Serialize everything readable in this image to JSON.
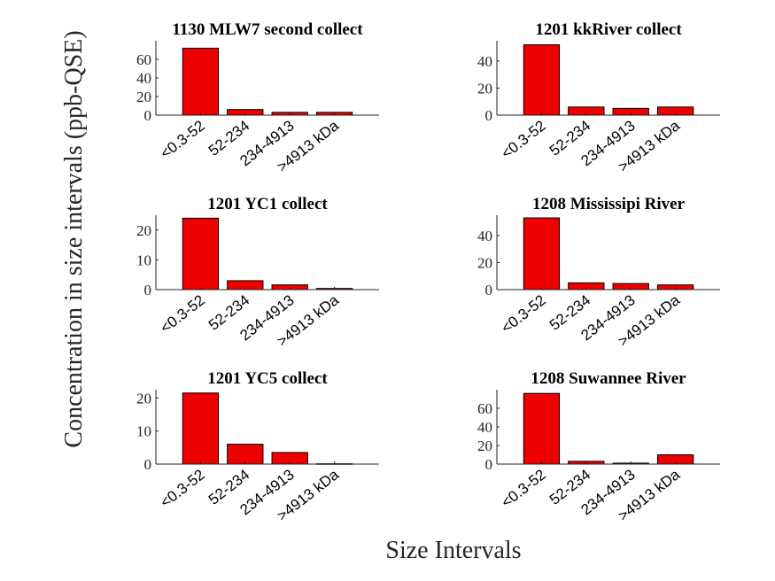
{
  "figure": {
    "ylabel": "Concentration in size intervals (ppb-QSE)",
    "xlabel": "Size Intervals"
  },
  "colors": {
    "bar": "#ee0000",
    "axis": "#222222"
  },
  "chart_data": [
    {
      "type": "bar",
      "title": "1130 MLW7 second collect",
      "categories": [
        "<0.3-52",
        "52-234",
        "234-4913",
        ">4913 kDa"
      ],
      "values": [
        72,
        6,
        3,
        3
      ],
      "ylim": [
        0,
        80
      ],
      "yticks": [
        0,
        20,
        40,
        60
      ],
      "grid": false
    },
    {
      "type": "bar",
      "title": "1201 kkRiver collect",
      "categories": [
        "<0.3-52",
        "52-234",
        "234-4913",
        ">4913 kDa"
      ],
      "values": [
        52,
        6,
        5,
        6
      ],
      "ylim": [
        0,
        55
      ],
      "yticks": [
        0,
        20,
        40
      ],
      "grid": false
    },
    {
      "type": "bar",
      "title": "1201 YC1 collect",
      "categories": [
        "<0.3-52",
        "52-234",
        "234-4913",
        ">4913 kDa"
      ],
      "values": [
        24,
        3,
        1.6,
        0.4
      ],
      "ylim": [
        0,
        25
      ],
      "yticks": [
        0,
        10,
        20
      ],
      "grid": false
    },
    {
      "type": "bar",
      "title": "1208 Mississipi River",
      "categories": [
        "<0.3-52",
        "52-234",
        "234-4913",
        ">4913 kDa"
      ],
      "values": [
        53,
        5,
        4.5,
        3.5
      ],
      "ylim": [
        0,
        55
      ],
      "yticks": [
        0,
        20,
        40
      ],
      "grid": false
    },
    {
      "type": "bar",
      "title": "1201 YC5 collect",
      "categories": [
        "<0.3-52",
        "52-234",
        "234-4913",
        ">4913 kDa"
      ],
      "values": [
        21.5,
        6,
        3.5,
        0.1
      ],
      "ylim": [
        0,
        22.5
      ],
      "yticks": [
        0,
        10,
        20
      ],
      "grid": false
    },
    {
      "type": "bar",
      "title": "1208 Suwannee River",
      "categories": [
        "<0.3-52",
        "52-234",
        "234-4913",
        ">4913 kDa"
      ],
      "values": [
        76,
        3,
        1,
        10
      ],
      "ylim": [
        0,
        80
      ],
      "yticks": [
        0,
        20,
        40,
        60
      ],
      "grid": false
    }
  ]
}
